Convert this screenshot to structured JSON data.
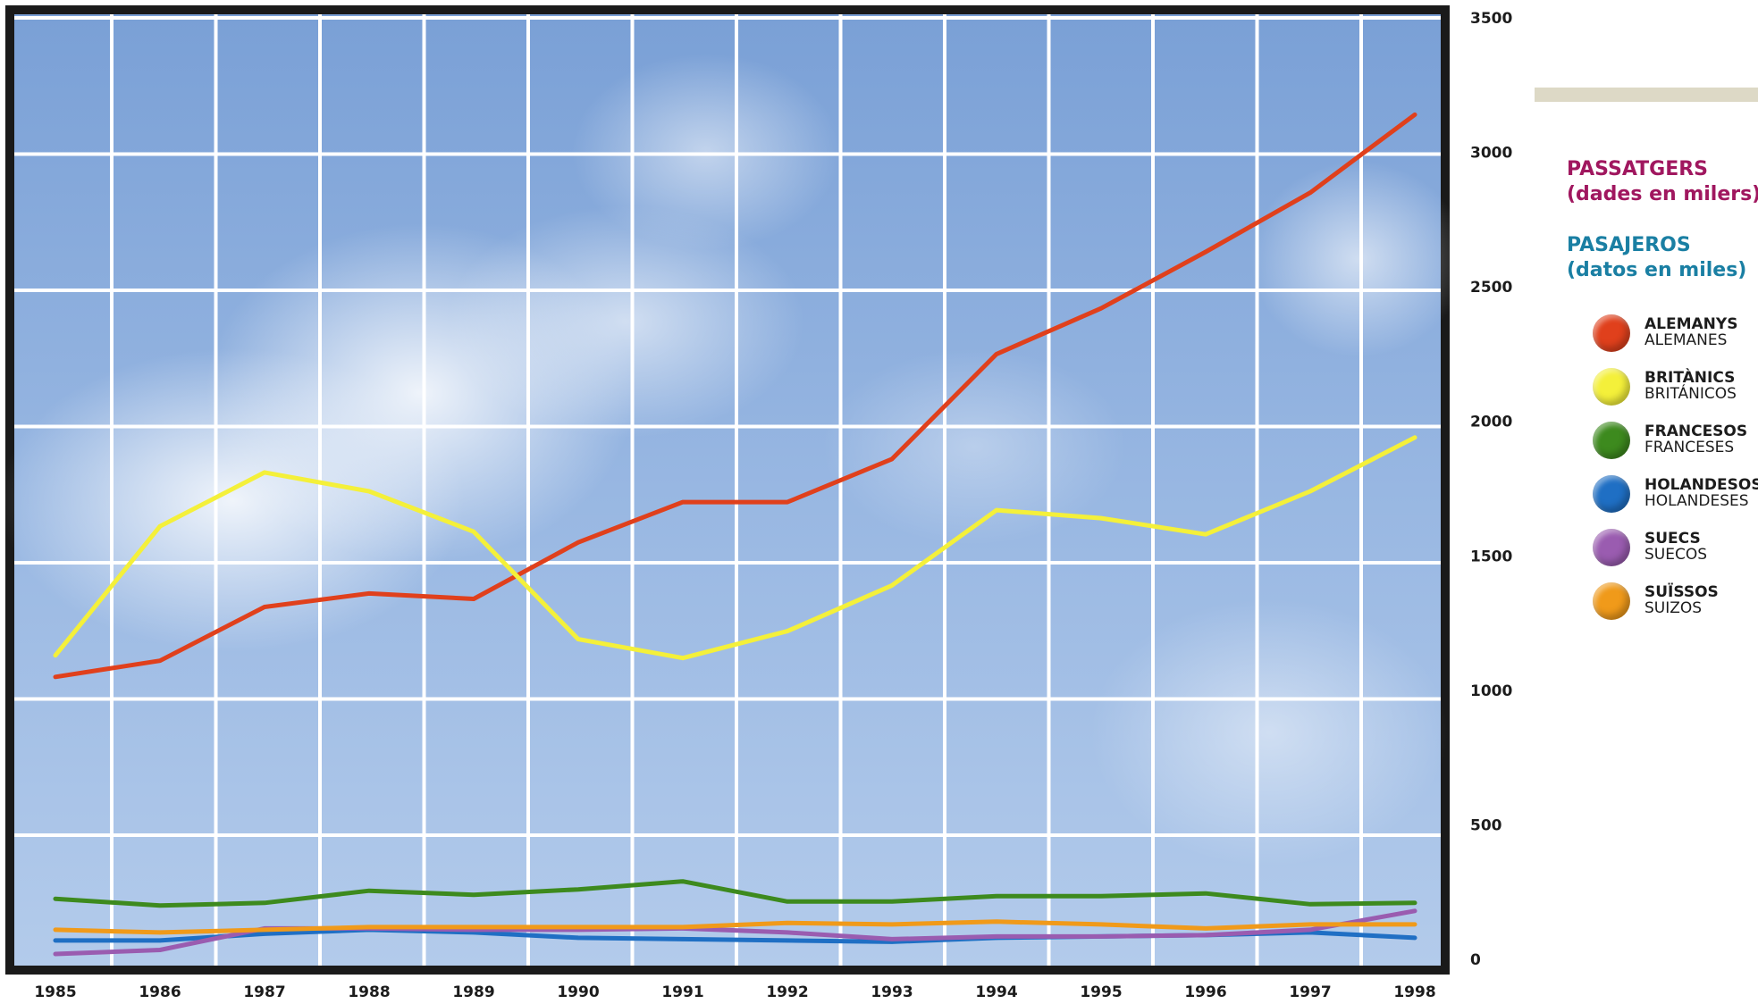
{
  "title_ca": "PASSATGERS",
  "subtitle_ca": "(dades en milers)",
  "title_es": "PASAJEROS",
  "subtitle_es": "(datos en miles)",
  "colors": {
    "title_ca": "#a0175f",
    "title_es": "#1a7fa3",
    "frame": "#1a1a1a",
    "grid": "#ffffff",
    "sky": "#8fb0de"
  },
  "chart_data": {
    "type": "line",
    "x": [
      1985,
      1986,
      1987,
      1988,
      1989,
      1990,
      1991,
      1992,
      1993,
      1994,
      1995,
      1996,
      1997,
      1998
    ],
    "xticks": [
      "1985",
      "1986",
      "1987",
      "1988",
      "1989",
      "1990",
      "1991",
      "1992",
      "1993",
      "1994",
      "1995",
      "1996",
      "1997",
      "1998"
    ],
    "ylim": [
      0,
      3500
    ],
    "yticks": [
      "0",
      "500",
      "1000",
      "1500",
      "2000",
      "2500",
      "3000",
      "3500"
    ],
    "grid": true,
    "legend_position": "right",
    "series": [
      {
        "name": "ALEMANYS",
        "name_es": "ALEMANES",
        "color": "#e0401c",
        "values": [
          1050,
          1110,
          1310,
          1360,
          1340,
          1550,
          1700,
          1700,
          1860,
          2250,
          2420,
          2630,
          2850,
          3140
        ]
      },
      {
        "name": "BRITÀNICS",
        "name_es": "BRITÁNICOS",
        "color": "#f4f03a",
        "values": [
          1130,
          1610,
          1810,
          1740,
          1590,
          1190,
          1120,
          1220,
          1390,
          1670,
          1640,
          1580,
          1740,
          1940
        ]
      },
      {
        "name": "FRANCESOS",
        "name_es": "FRANCESES",
        "color": "#3d8a1e",
        "values": [
          225,
          200,
          210,
          255,
          240,
          260,
          290,
          215,
          215,
          235,
          235,
          245,
          205,
          210
        ]
      },
      {
        "name": "HOLANDESOS",
        "name_es": "HOLANDESES",
        "color": "#1f6fc4",
        "values": [
          70,
          70,
          95,
          110,
          100,
          80,
          75,
          70,
          65,
          80,
          85,
          90,
          100,
          80
        ]
      },
      {
        "name": "SUECS",
        "name_es": "SUECOS",
        "color": "#9a5cb0",
        "values": [
          20,
          35,
          115,
          115,
          110,
          110,
          115,
          100,
          75,
          85,
          85,
          90,
          110,
          180
        ]
      },
      {
        "name": "SUÏSSOS",
        "name_es": "SUIZOS",
        "color": "#f09a1a",
        "values": [
          110,
          100,
          110,
          120,
          120,
          120,
          120,
          135,
          130,
          140,
          130,
          115,
          130,
          130
        ]
      }
    ]
  }
}
